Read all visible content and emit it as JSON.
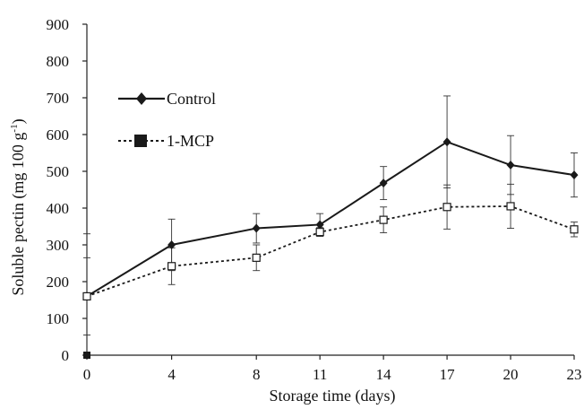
{
  "chart_data": {
    "type": "line",
    "x": [
      0,
      4,
      8,
      11,
      14,
      17,
      20,
      23
    ],
    "xticks": [
      "0",
      "4",
      "8",
      "11",
      "14",
      "17",
      "20",
      "23"
    ],
    "xlabel": "Storage time (days)",
    "ylabel": {
      "main": "Soluble pectin (mg 100 g",
      "superscript": "-1",
      "close": ")"
    },
    "ylim": [
      0,
      900
    ],
    "yticks": [
      0,
      100,
      200,
      300,
      400,
      500,
      600,
      700,
      800,
      900
    ],
    "grid": false,
    "legend_position": "upper-left",
    "series": [
      {
        "name": "Control",
        "style": "solid",
        "marker": "diamond",
        "color": "#1a1a1a",
        "values": [
          160,
          300,
          345,
          355,
          468,
          580,
          517,
          490
        ],
        "error": [
          170,
          70,
          40,
          30,
          45,
          125,
          80,
          60
        ]
      },
      {
        "name": "1-MCP",
        "style": "dotted",
        "marker": "open-square",
        "color": "#1a1a1a",
        "values": [
          160,
          242,
          265,
          335,
          368,
          403,
          405,
          342
        ],
        "error": [
          105,
          50,
          35,
          12,
          35,
          60,
          60,
          20
        ]
      }
    ]
  }
}
